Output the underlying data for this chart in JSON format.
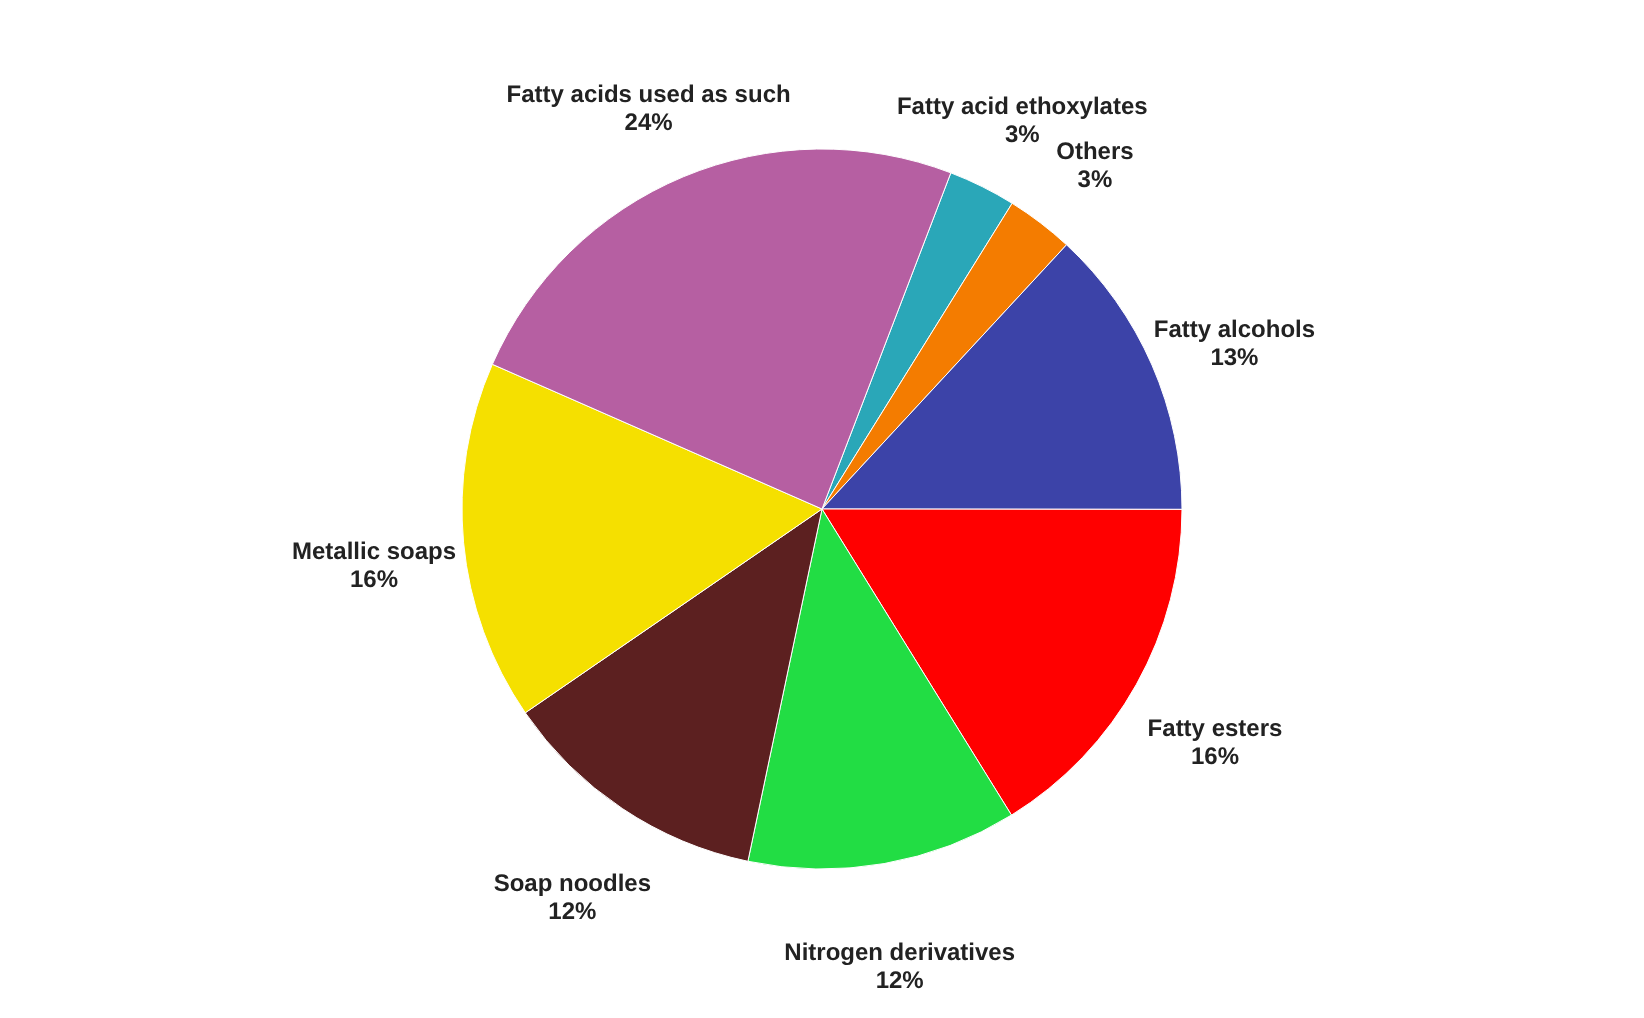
{
  "chart_data": {
    "type": "pie",
    "categories": [
      "Fatty acid ethoxylates",
      "Others",
      "Fatty alcohols",
      "Fatty esters",
      "Nitrogen derivatives",
      "Soap noodles",
      "Metallic soaps",
      "Fatty acids used as such"
    ],
    "values": [
      3,
      3,
      13,
      16,
      12,
      12,
      16,
      24
    ],
    "value_labels": [
      "3%",
      "3%",
      "13%",
      "16%",
      "12%",
      "12%",
      "16%",
      "24%"
    ],
    "colors": [
      "#2aa7b8",
      "#f47c00",
      "#3c43a8",
      "#ff0000",
      "#22dd44",
      "#5c2020",
      "#f5e000",
      "#b65fa2"
    ]
  }
}
